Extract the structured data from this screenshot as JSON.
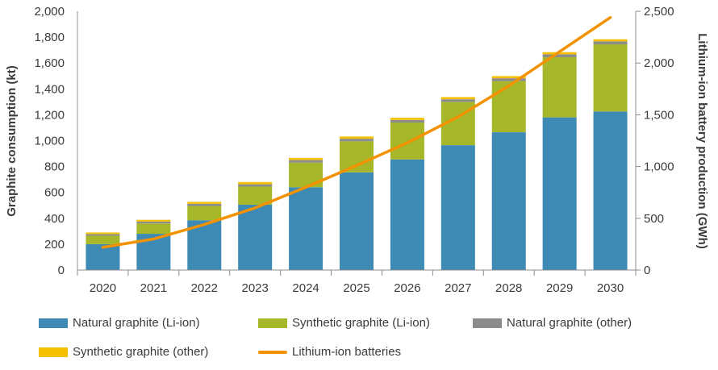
{
  "chart_data": {
    "type": "bar",
    "stacked": true,
    "categories": [
      "2020",
      "2021",
      "2022",
      "2023",
      "2024",
      "2025",
      "2026",
      "2027",
      "2028",
      "2029",
      "2030"
    ],
    "series": [
      {
        "name": "Natural graphite (Li-ion)",
        "color": "#3d8ab5",
        "axis": "left",
        "type": "bar",
        "values": [
          200,
          280,
          385,
          505,
          640,
          755,
          855,
          965,
          1065,
          1180,
          1225
        ]
      },
      {
        "name": "Synthetic graphite (Li-ion)",
        "color": "#a6b82a",
        "axis": "left",
        "type": "bar",
        "values": [
          65,
          80,
          110,
          140,
          190,
          240,
          285,
          335,
          395,
          465,
          520
        ]
      },
      {
        "name": "Natural graphite (other)",
        "color": "#8c8c8c",
        "axis": "left",
        "type": "bar",
        "values": [
          13,
          15,
          17,
          18,
          20,
          20,
          20,
          20,
          22,
          22,
          22
        ]
      },
      {
        "name": "Synthetic graphite (other)",
        "color": "#f5c000",
        "axis": "left",
        "type": "bar",
        "values": [
          12,
          13,
          15,
          17,
          17,
          17,
          17,
          17,
          17,
          17,
          17
        ]
      },
      {
        "name": "Lithium-ion batteries",
        "color": "#f39200",
        "axis": "right",
        "type": "line",
        "values": [
          220,
          300,
          440,
          600,
          800,
          1010,
          1230,
          1480,
          1780,
          2110,
          2440
        ]
      }
    ],
    "y_left": {
      "label": "Graphite consumption (kt)",
      "min": 0,
      "max": 2000,
      "step": 200,
      "ticks": [
        "0",
        "200",
        "400",
        "600",
        "800",
        "1,000",
        "1,200",
        "1,400",
        "1,600",
        "1,800",
        "2,000"
      ]
    },
    "y_right": {
      "label": "Lithium-ion battery production (GWh)",
      "min": 0,
      "max": 2500,
      "step": 500,
      "ticks": [
        "0",
        "500",
        "1,000",
        "1,500",
        "2,000",
        "2,500"
      ]
    },
    "grid": false,
    "legend_position": "bottom"
  }
}
